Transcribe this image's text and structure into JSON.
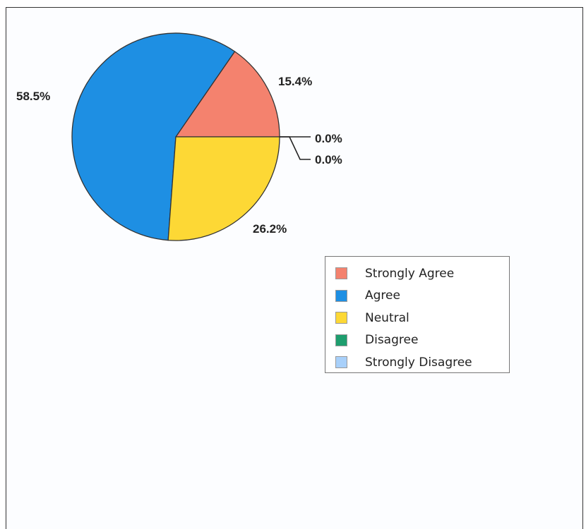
{
  "chart_data": {
    "type": "pie",
    "categories": [
      "Strongly Agree",
      "Agree",
      "Neutral",
      "Disagree",
      "Strongly Disagree"
    ],
    "values": [
      15.4,
      58.5,
      26.2,
      0.0,
      0.0
    ],
    "labels": [
      "15.4%",
      "58.5%",
      "26.2%",
      "0.0%",
      "0.0%"
    ],
    "colors": [
      "#F4826E",
      "#1E8FE3",
      "#FDD835",
      "#1E9E6E",
      "#A8D0FA"
    ],
    "legend_position": "right"
  }
}
